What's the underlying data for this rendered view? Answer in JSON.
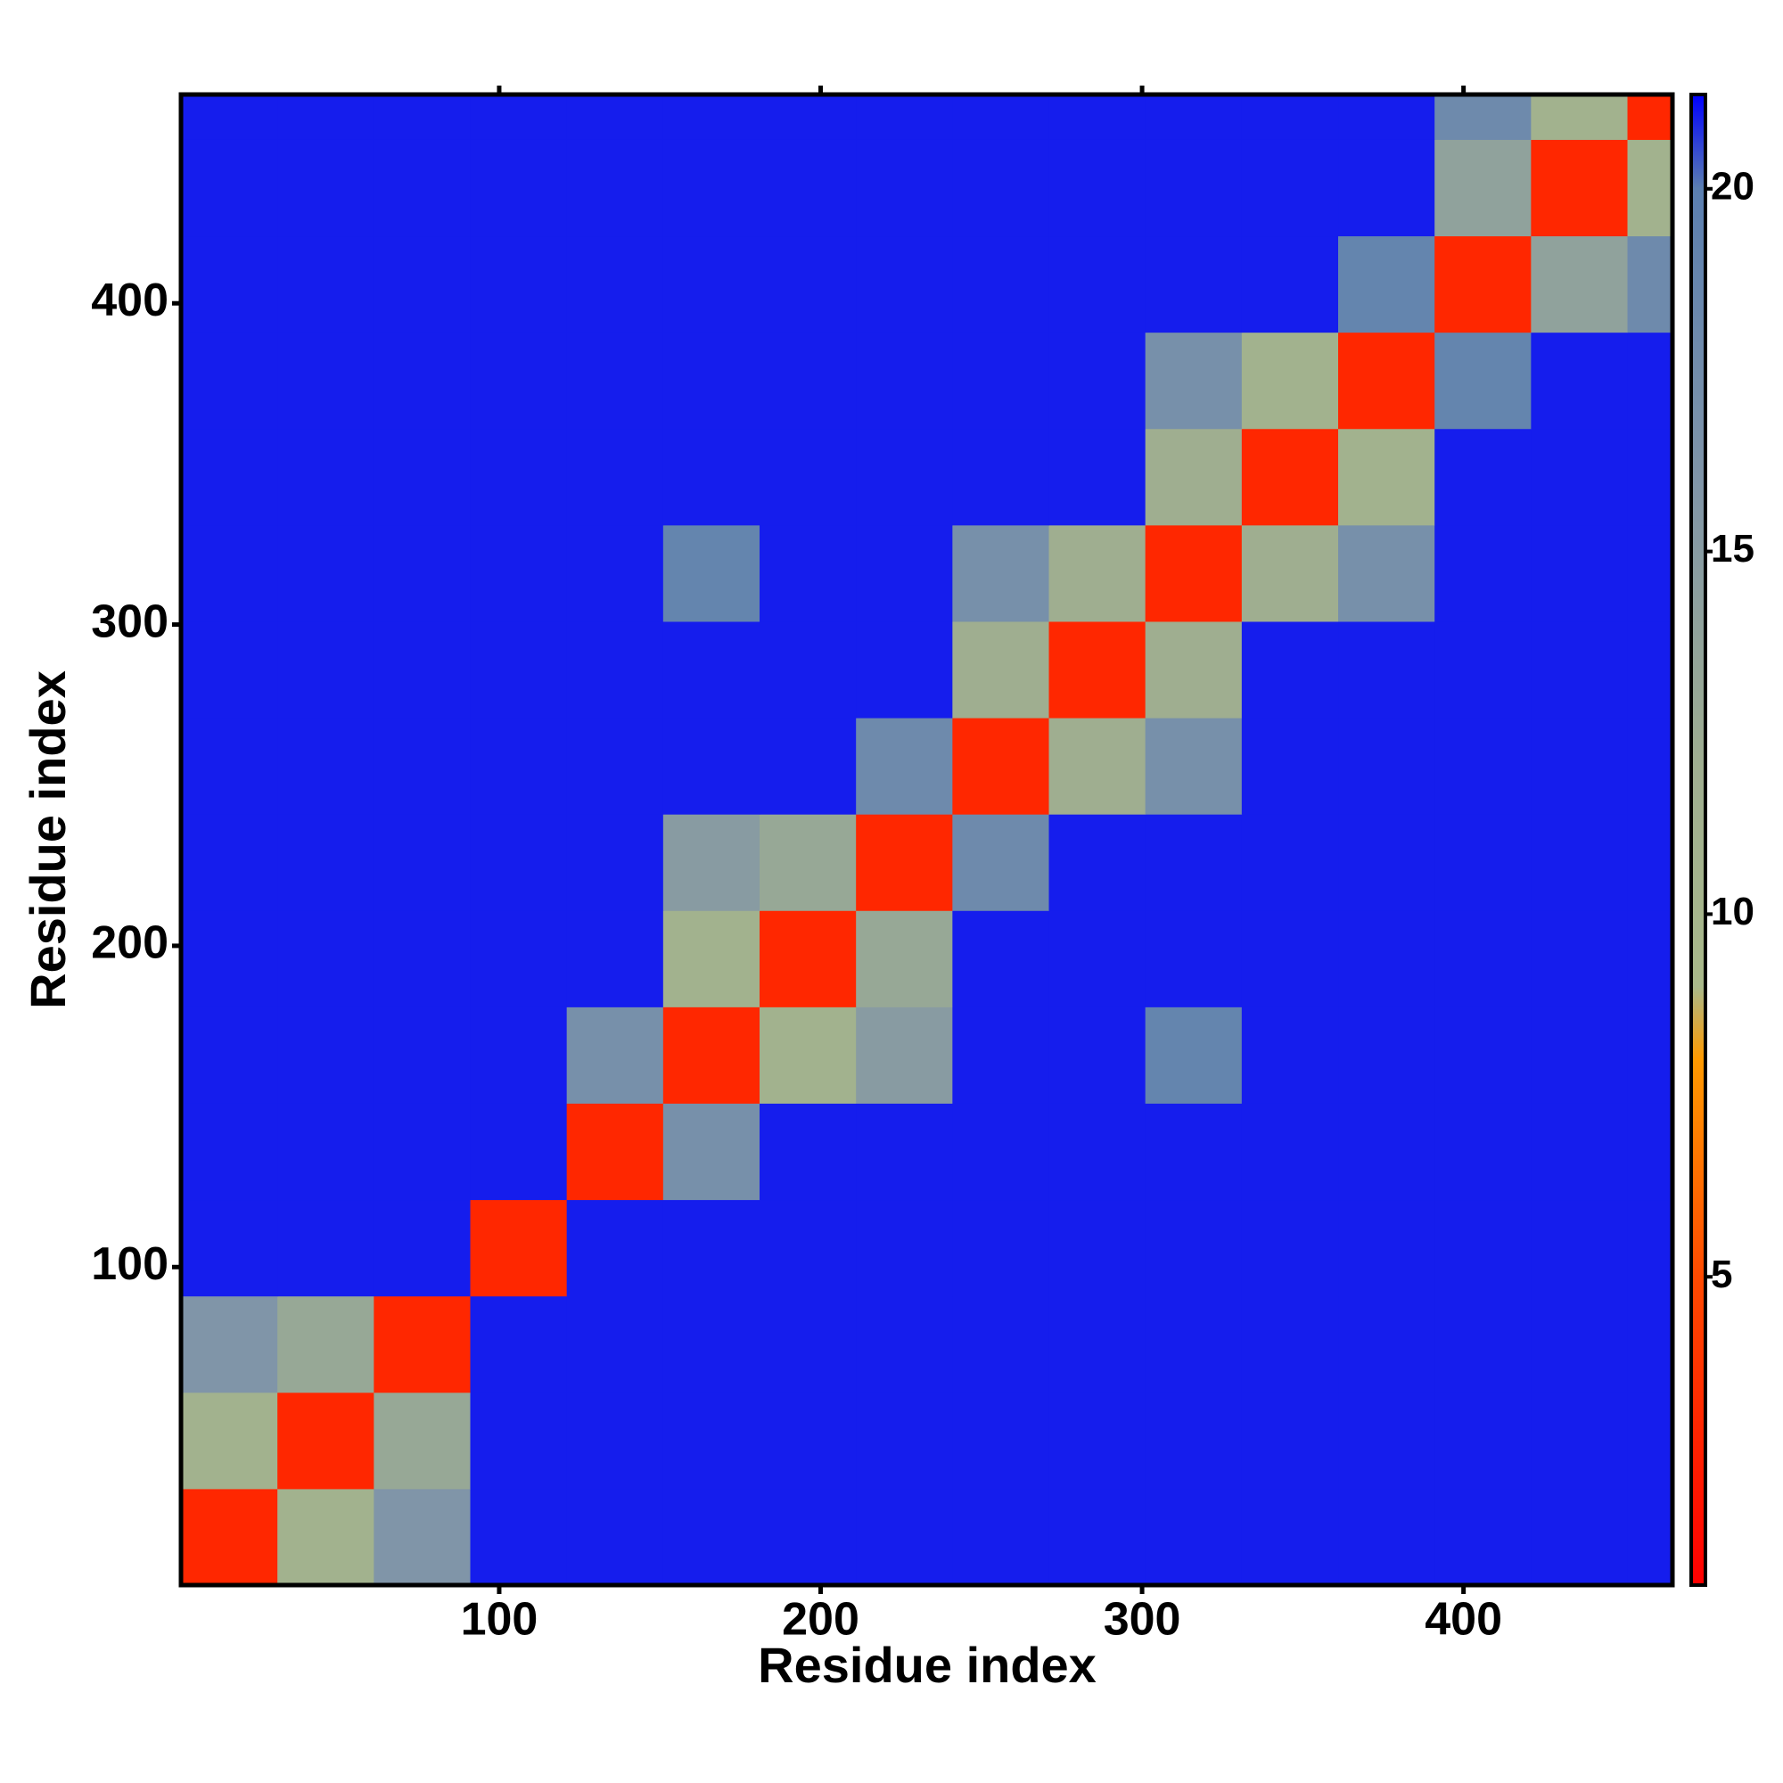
{
  "chart_data": {
    "type": "heatmap",
    "xlabel": "Residue index",
    "ylabel": "Residue index",
    "xlim": [
      1,
      465
    ],
    "ylim": [
      1,
      465
    ],
    "xticks": [
      100,
      200,
      300,
      400
    ],
    "yticks": [
      100,
      200,
      300,
      400
    ],
    "bins": [
      1,
      31,
      61,
      91,
      121,
      151,
      181,
      211,
      241,
      271,
      301,
      331,
      361,
      391,
      421,
      451,
      465
    ],
    "z": [
      [
        3,
        11,
        16,
        21,
        21,
        21,
        21,
        21,
        21,
        21,
        21,
        21,
        21,
        21,
        21,
        21
      ],
      [
        11,
        3,
        13,
        21,
        21,
        21,
        21,
        21,
        21,
        21,
        21,
        21,
        21,
        21,
        21,
        21
      ],
      [
        16,
        13,
        3,
        21,
        21,
        21,
        21,
        21,
        21,
        21,
        21,
        21,
        21,
        21,
        21,
        21
      ],
      [
        21,
        21,
        21,
        3,
        21,
        21,
        21,
        21,
        21,
        21,
        21,
        21,
        21,
        21,
        21,
        21
      ],
      [
        21,
        21,
        21,
        21,
        3,
        17,
        21,
        21,
        21,
        21,
        21,
        21,
        21,
        21,
        21,
        21
      ],
      [
        21,
        21,
        21,
        21,
        17,
        3,
        11,
        15,
        21,
        21,
        19,
        21,
        21,
        21,
        21,
        21
      ],
      [
        21,
        21,
        21,
        21,
        21,
        11,
        3,
        13,
        21,
        21,
        21,
        21,
        21,
        21,
        21,
        21
      ],
      [
        21,
        21,
        21,
        21,
        21,
        15,
        13,
        3,
        18,
        21,
        21,
        21,
        21,
        21,
        21,
        21
      ],
      [
        21,
        21,
        21,
        21,
        21,
        21,
        21,
        18,
        3,
        12,
        17,
        21,
        21,
        21,
        21,
        21
      ],
      [
        21,
        21,
        21,
        21,
        21,
        21,
        21,
        21,
        12,
        3,
        12,
        21,
        21,
        21,
        21,
        21
      ],
      [
        21,
        21,
        21,
        21,
        21,
        19,
        21,
        21,
        17,
        12,
        3,
        12,
        17,
        21,
        21,
        21
      ],
      [
        21,
        21,
        21,
        21,
        21,
        21,
        21,
        21,
        21,
        21,
        12,
        3,
        11,
        21,
        21,
        21
      ],
      [
        21,
        21,
        21,
        21,
        21,
        21,
        21,
        21,
        21,
        21,
        17,
        11,
        3,
        19,
        21,
        21
      ],
      [
        21,
        21,
        21,
        21,
        21,
        21,
        21,
        21,
        21,
        21,
        21,
        21,
        19,
        3,
        14,
        18
      ],
      [
        21,
        21,
        21,
        21,
        21,
        21,
        21,
        21,
        21,
        21,
        21,
        21,
        21,
        14,
        3,
        11
      ],
      [
        21,
        21,
        21,
        21,
        21,
        21,
        21,
        21,
        21,
        21,
        21,
        21,
        21,
        18,
        11,
        3
      ]
    ],
    "clim": [
      0.75,
      21.3
    ],
    "cticks": [
      5,
      10,
      15,
      20
    ],
    "colorscale": [
      [
        0.75,
        "#ff0000"
      ],
      [
        5,
        "#ff4a00"
      ],
      [
        8,
        "#ff9a00"
      ],
      [
        9,
        "#a9b98a"
      ],
      [
        12,
        "#9fae90"
      ],
      [
        16,
        "#8095a8"
      ],
      [
        20,
        "#5b7fb0"
      ],
      [
        21.3,
        "#0000ff"
      ]
    ]
  }
}
